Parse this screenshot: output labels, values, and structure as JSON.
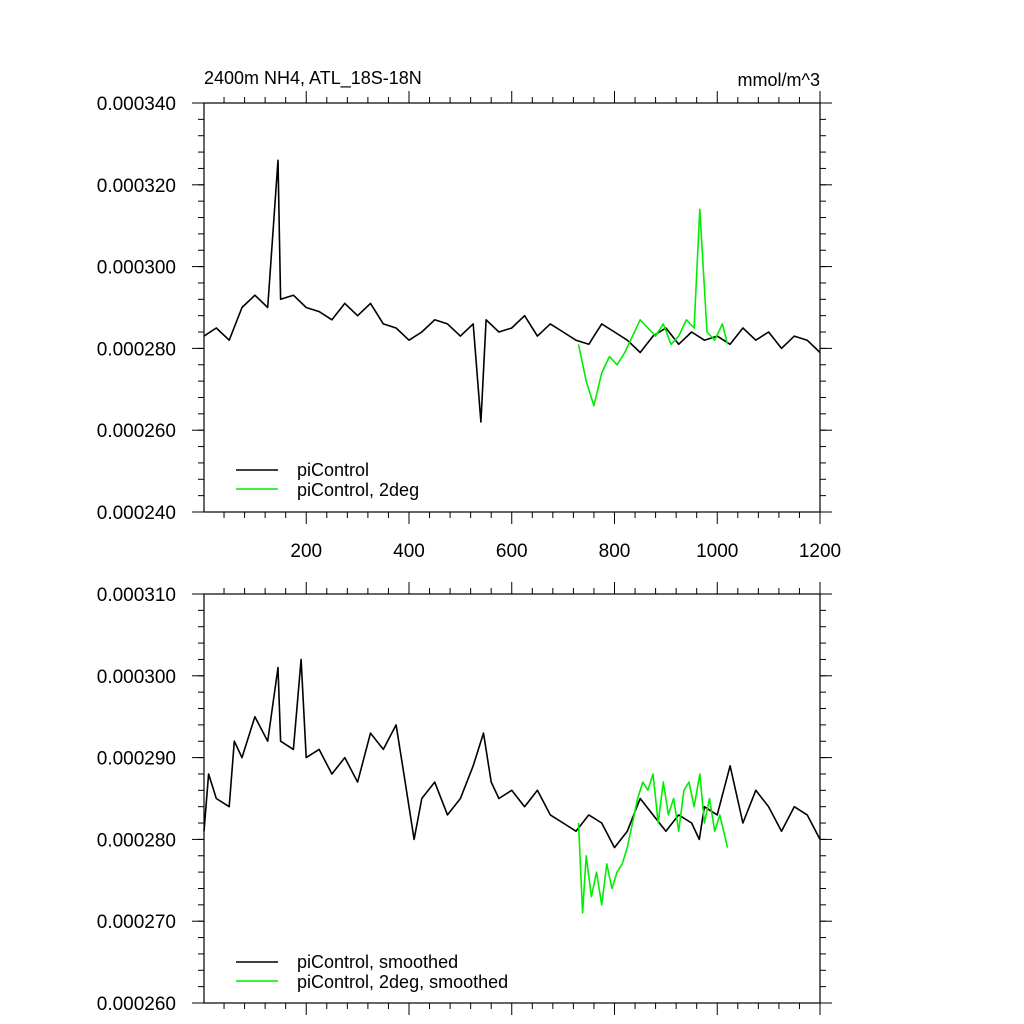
{
  "chart_data": [
    {
      "type": "line",
      "title": "2400m NH4, ATL_18S-18N",
      "units": "mmol/m^3",
      "xlim": [
        1,
        1200
      ],
      "ylim": [
        0.00024,
        0.00034
      ],
      "x_ticks": [
        200,
        400,
        600,
        800,
        1000,
        1200
      ],
      "x_tick_labels": [
        "200",
        "400",
        "600",
        "800",
        "1000",
        "1200"
      ],
      "y_ticks": [
        0.00024,
        0.00026,
        0.00028,
        0.0003,
        0.00032,
        0.00034
      ],
      "y_tick_labels": [
        "0.000240",
        "0.000260",
        "0.000280",
        "0.000300",
        "0.000320",
        "0.000340"
      ],
      "legend": {
        "placement": "lower-left",
        "entries": [
          "piControl",
          "piControl, 2deg"
        ]
      },
      "series": [
        {
          "name": "piControl",
          "color": "#000000",
          "x": [
            1,
            25,
            50,
            75,
            100,
            125,
            145,
            150,
            175,
            200,
            225,
            250,
            275,
            300,
            325,
            350,
            375,
            400,
            425,
            450,
            475,
            500,
            525,
            540,
            550,
            575,
            600,
            625,
            650,
            675,
            700,
            725,
            750,
            775,
            800,
            825,
            850,
            875,
            900,
            925,
            950,
            975,
            1000,
            1025,
            1050,
            1075,
            1100,
            1125,
            1150,
            1175,
            1200
          ],
          "y": [
            0.000283,
            0.000285,
            0.000282,
            0.00029,
            0.000293,
            0.00029,
            0.000326,
            0.000292,
            0.000293,
            0.00029,
            0.000289,
            0.000287,
            0.000291,
            0.000288,
            0.000291,
            0.000286,
            0.000285,
            0.000282,
            0.000284,
            0.000287,
            0.000286,
            0.000283,
            0.000286,
            0.000262,
            0.000287,
            0.000284,
            0.000285,
            0.000288,
            0.000283,
            0.000286,
            0.000284,
            0.000282,
            0.000281,
            0.000286,
            0.000284,
            0.000282,
            0.000279,
            0.000283,
            0.000285,
            0.000281,
            0.000284,
            0.000282,
            0.000283,
            0.000281,
            0.000285,
            0.000282,
            0.000284,
            0.00028,
            0.000283,
            0.000282,
            0.000279
          ]
        },
        {
          "name": "piControl, 2deg",
          "color": "#00ee00",
          "x": [
            730,
            745,
            760,
            775,
            790,
            805,
            820,
            835,
            850,
            865,
            880,
            895,
            910,
            925,
            940,
            955,
            966,
            980,
            995,
            1010,
            1020
          ],
          "y": [
            0.000281,
            0.000272,
            0.000266,
            0.000274,
            0.000278,
            0.000276,
            0.000279,
            0.000283,
            0.000287,
            0.000285,
            0.000283,
            0.000286,
            0.000281,
            0.000283,
            0.000287,
            0.000285,
            0.000314,
            0.000284,
            0.000282,
            0.000286,
            0.000281
          ]
        }
      ]
    },
    {
      "type": "line",
      "title": "",
      "xlim": [
        1,
        1200
      ],
      "ylim": [
        0.00026,
        0.00031
      ],
      "x_ticks": [
        200,
        400,
        600,
        800,
        1000,
        1200
      ],
      "y_ticks": [
        0.00026,
        0.00027,
        0.00028,
        0.00029,
        0.0003,
        0.00031
      ],
      "y_tick_labels": [
        "0.000260",
        "0.000270",
        "0.000280",
        "0.000290",
        "0.000300",
        "0.000310"
      ],
      "legend": {
        "placement": "lower-left",
        "entries": [
          "piControl, smoothed",
          "piControl, 2deg, smoothed"
        ]
      },
      "series": [
        {
          "name": "piControl, smoothed",
          "color": "#000000",
          "x": [
            1,
            10,
            25,
            50,
            60,
            75,
            100,
            125,
            145,
            150,
            175,
            190,
            200,
            225,
            250,
            275,
            300,
            325,
            350,
            375,
            390,
            410,
            425,
            450,
            475,
            500,
            525,
            545,
            560,
            575,
            600,
            625,
            650,
            675,
            700,
            725,
            750,
            775,
            800,
            825,
            850,
            875,
            900,
            925,
            950,
            965,
            975,
            1000,
            1025,
            1050,
            1075,
            1100,
            1125,
            1150,
            1175,
            1200
          ],
          "y": [
            0.000281,
            0.000288,
            0.000285,
            0.000284,
            0.000292,
            0.00029,
            0.000295,
            0.000292,
            0.000301,
            0.000292,
            0.000291,
            0.000302,
            0.00029,
            0.000291,
            0.000288,
            0.00029,
            0.000287,
            0.000293,
            0.000291,
            0.000294,
            0.000288,
            0.00028,
            0.000285,
            0.000287,
            0.000283,
            0.000285,
            0.000289,
            0.000293,
            0.000287,
            0.000285,
            0.000286,
            0.000284,
            0.000286,
            0.000283,
            0.000282,
            0.000281,
            0.000283,
            0.000282,
            0.000279,
            0.000281,
            0.000285,
            0.000283,
            0.000281,
            0.000283,
            0.000282,
            0.00028,
            0.000284,
            0.000283,
            0.000289,
            0.000282,
            0.000286,
            0.000284,
            0.000281,
            0.000284,
            0.000283,
            0.00028
          ]
        },
        {
          "name": "piControl, 2deg, smoothed",
          "color": "#00ee00",
          "x": [
            730,
            738,
            745,
            755,
            765,
            775,
            785,
            795,
            805,
            815,
            825,
            835,
            845,
            855,
            865,
            875,
            885,
            895,
            905,
            915,
            925,
            935,
            945,
            955,
            966,
            975,
            985,
            995,
            1005,
            1020
          ],
          "y": [
            0.000282,
            0.000271,
            0.000278,
            0.000273,
            0.000276,
            0.000272,
            0.000277,
            0.000274,
            0.000276,
            0.000277,
            0.000279,
            0.000282,
            0.000285,
            0.000287,
            0.000286,
            0.000288,
            0.000282,
            0.000287,
            0.000283,
            0.000285,
            0.000281,
            0.000286,
            0.000287,
            0.000284,
            0.000288,
            0.000282,
            0.000285,
            0.000281,
            0.000283,
            0.000279
          ]
        }
      ]
    }
  ]
}
